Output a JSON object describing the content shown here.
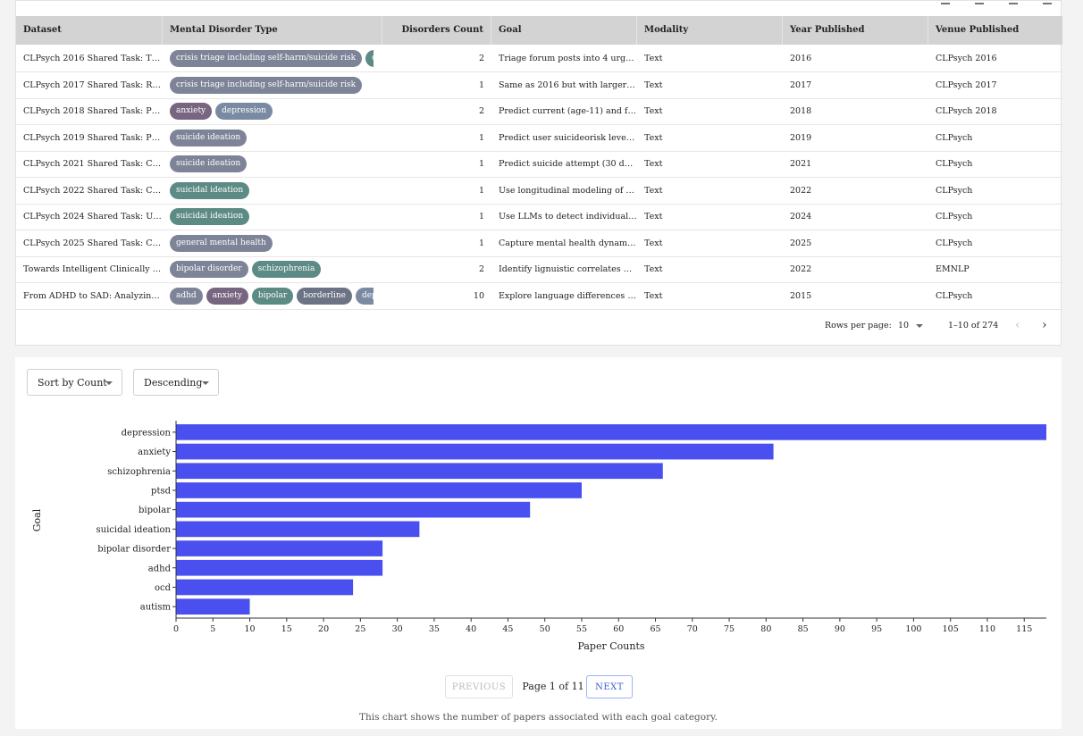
{
  "table": {
    "headers": [
      "Dataset",
      "Mental Disorder Type",
      "Disorders Count",
      "Goal",
      "Modality",
      "Year Published",
      "Venue Published"
    ],
    "rows": [
      {
        "dataset": "CLPsych 2016 Shared Task: Tri...",
        "disorders": [
          "crisis triage including self-harm/suicide risk",
          "depress"
        ],
        "count": "2",
        "goal": "Triage forum posts into 4 urgen...",
        "modality": "Text",
        "year": "2016",
        "venue": "CLPsych 2016"
      },
      {
        "dataset": "CLPsych 2017 Shared Task: Rea...",
        "disorders": [
          "crisis triage including self-harm/suicide risk"
        ],
        "count": "1",
        "goal": "Same as 2016 but with larger da...",
        "modality": "Text",
        "year": "2017",
        "venue": "CLPsych 2017"
      },
      {
        "dataset": "CLPsych 2018 Shared Task: Pre...",
        "disorders": [
          "anxiety",
          "depression"
        ],
        "count": "2",
        "goal": "Predict current (age-11) and fut...",
        "modality": "Text",
        "year": "2018",
        "venue": "CLPsych 2018"
      },
      {
        "dataset": "CLPsych 2019 Shared Task: Pre...",
        "disorders": [
          "suicide ideation"
        ],
        "count": "1",
        "goal": "Predict user suicideorisk level f...",
        "modality": "Text",
        "year": "2019",
        "venue": "CLPsych"
      },
      {
        "dataset": "CLPsych 2021 Shared Task: Co...",
        "disorders": [
          "suicide ideation"
        ],
        "count": "1",
        "goal": "Predict suicide attempt (30 day...",
        "modality": "Text",
        "year": "2021",
        "venue": "CLPsych"
      },
      {
        "dataset": "CLPsych 2022 Shared Task: Ca...",
        "disorders": [
          "suicidal ideation"
        ],
        "count": "1",
        "goal": "Use longitudinal modeling of th...",
        "modality": "Text",
        "year": "2022",
        "venue": "CLPsych"
      },
      {
        "dataset": "CLPsych 2024 Shared Task: Uti...",
        "disorders": [
          "suicidal ideation"
        ],
        "count": "1",
        "goal": "Use LLMs to detect individuals' ...",
        "modality": "Text",
        "year": "2024",
        "venue": "CLPsych"
      },
      {
        "dataset": "CLPsych 2025 Shared Task: Ca...",
        "disorders": [
          "general mental health"
        ],
        "count": "1",
        "goal": "Capture mental health dynamic...",
        "modality": "Text",
        "year": "2025",
        "venue": "CLPsych"
      },
      {
        "dataset": "Towards Intelligent Clinically I...",
        "disorders": [
          "bipolar disorder",
          "schizophrenia"
        ],
        "count": "2",
        "goal": "Identify lignuistic correlates bet...",
        "modality": "Text",
        "year": "2022",
        "venue": "EMNLP"
      },
      {
        "dataset": "From ADHD to SAD: Analyzing ...",
        "disorders": [
          "adhd",
          "anxiety",
          "bipolar",
          "borderline",
          "depressi"
        ],
        "count": "10",
        "goal": "Explore language differences be...",
        "modality": "Text",
        "year": "2015",
        "venue": "CLPsych"
      }
    ],
    "chip_colors": {
      "crisis triage including self-harm/suicide risk": "#7d8497",
      "depress": "#5c8a84",
      "depressi": "#7a8aa3",
      "anxiety": "#78657f",
      "depression": "#7a8aa3",
      "suicide ideation": "#7d8497",
      "suicidal ideation": "#5c8a84",
      "general mental health": "#7d8497",
      "bipolar disorder": "#7d8497",
      "schizophrenia": "#5c8a84",
      "adhd": "#7d8497",
      "bipolar": "#5c8a84",
      "borderline": "#6b7385"
    },
    "footer": {
      "rows_per_page_label": "Rows per page:",
      "rows_per_page_value": "10",
      "range": "1–10 of 274",
      "prev_icon": "chevron-left",
      "next_icon": "chevron-right"
    }
  },
  "controls": {
    "sort_by": "Sort by Count",
    "order": "Descending"
  },
  "chart_data": {
    "type": "bar",
    "orientation": "horizontal",
    "categories": [
      "depression",
      "anxiety",
      "schizophrenia",
      "ptsd",
      "bipolar",
      "suicidal ideation",
      "bipolar disorder",
      "adhd",
      "ocd",
      "autism"
    ],
    "values": [
      118,
      81,
      66,
      55,
      48,
      33,
      28,
      28,
      24,
      10
    ],
    "xlabel": "Paper Counts",
    "ylabel": "Goal",
    "xlim": [
      0,
      118
    ],
    "xticks": [
      0,
      5,
      10,
      15,
      20,
      25,
      30,
      35,
      40,
      45,
      50,
      55,
      60,
      65,
      70,
      75,
      80,
      85,
      90,
      95,
      100,
      105,
      110,
      115
    ],
    "bar_color": "#4a50f0",
    "grid": false
  },
  "pagination": {
    "previous": "PREVIOUS",
    "page_text": "Page 1 of 11",
    "next": "NEXT"
  },
  "caption": "This chart shows the number of papers associated with each goal category."
}
